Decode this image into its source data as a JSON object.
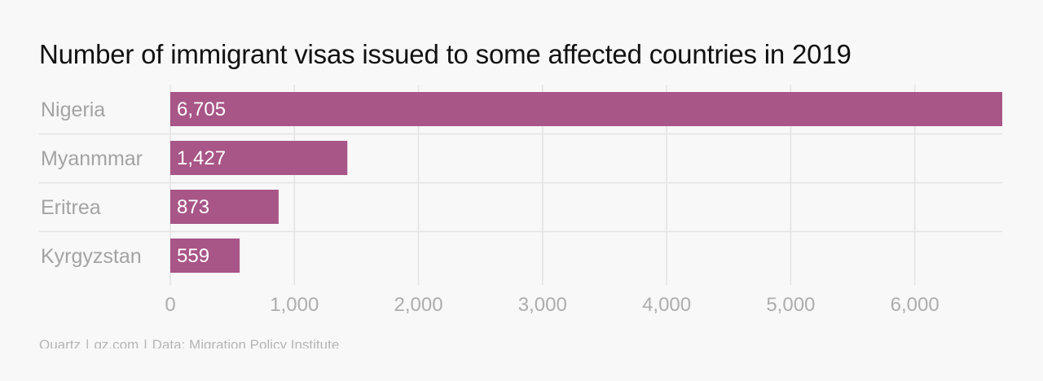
{
  "title": "Number of immigrant visas issued to some affected countries in 2019",
  "source": {
    "brand": "Quartz",
    "site": "qz.com",
    "data": "Data: Migration Policy Institute"
  },
  "colors": {
    "bar": "#a85587",
    "bar_label": "#ffffff",
    "category_label": "#a3a3a3",
    "tick_label": "#adadad",
    "grid": "#e3e3e3",
    "background": "#f8f8f8"
  },
  "chart_data": {
    "type": "bar",
    "orientation": "horizontal",
    "title": "Number of immigrant visas issued to some affected countries in 2019",
    "categories": [
      "Nigeria",
      "Myanmmar",
      "Eritrea",
      "Kyrgyzstan"
    ],
    "values": [
      6705,
      1427,
      873,
      559
    ],
    "value_labels": [
      "6,705",
      "1,427",
      "873",
      "559"
    ],
    "xlim": [
      0,
      6705
    ],
    "xticks": [
      0,
      1000,
      2000,
      3000,
      4000,
      5000,
      6000
    ],
    "xtick_labels": [
      "0",
      "1,000",
      "2,000",
      "3,000",
      "4,000",
      "5,000",
      "6,000"
    ],
    "xlabel": "",
    "ylabel": "",
    "grid": true,
    "legend": "none"
  }
}
